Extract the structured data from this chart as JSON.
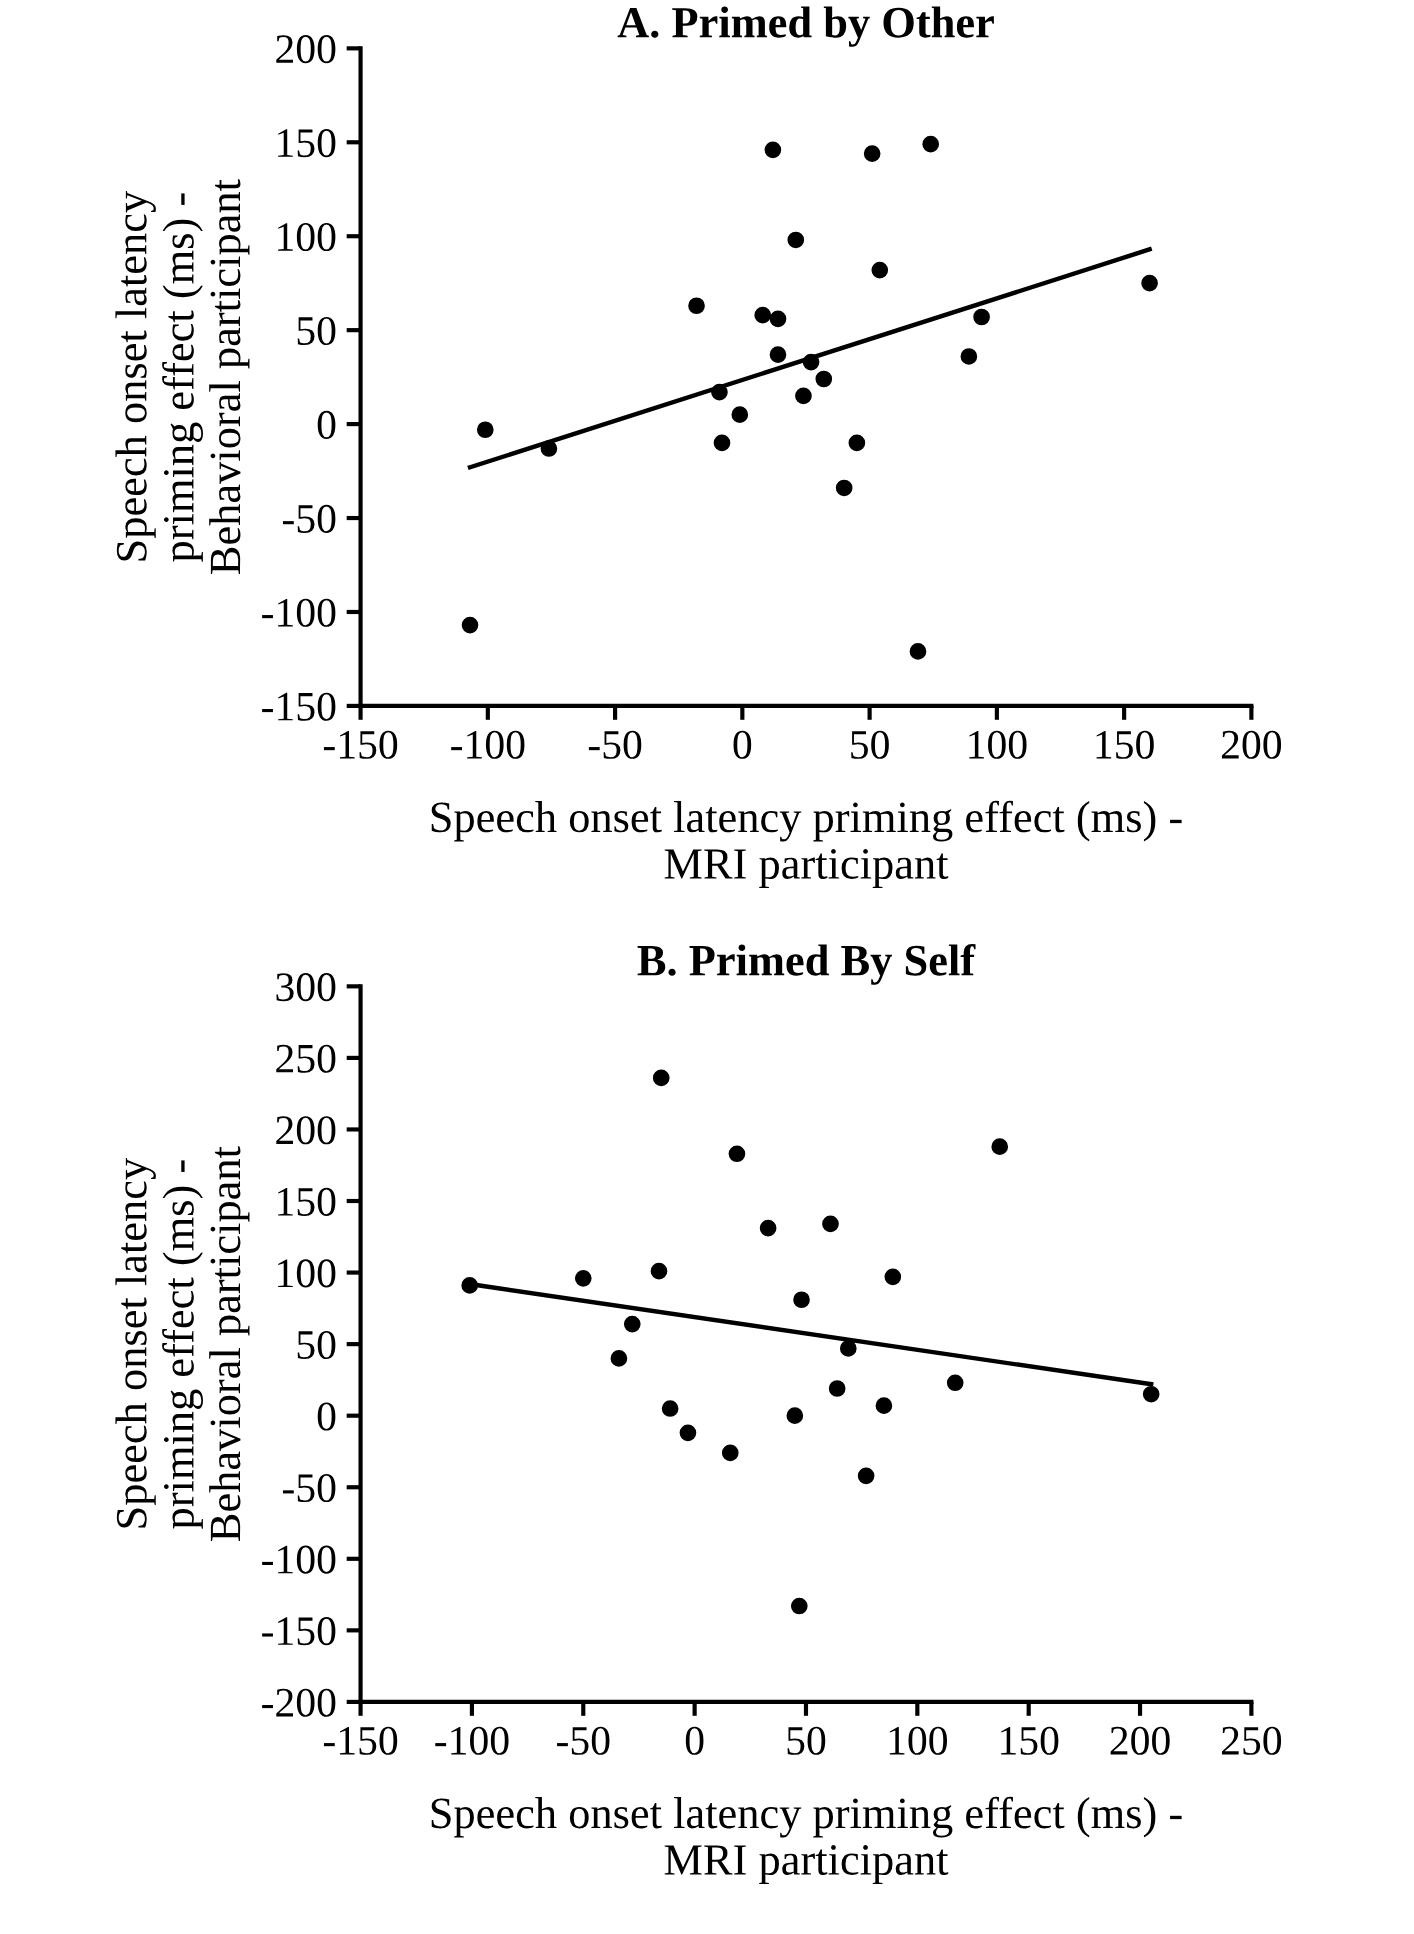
{
  "chart_data": [
    {
      "type": "scatter",
      "title": "A. Primed by Other",
      "xlabel": "Speech onset latency priming effect (ms) -\nMRI participant",
      "ylabel": "Speech onset latency\npriming effect (ms) -\nBehavioral participant",
      "xlim": [
        -150,
        200
      ],
      "xticks": [
        -150,
        -100,
        -50,
        0,
        50,
        100,
        150,
        200
      ],
      "ylim": [
        -150,
        200
      ],
      "yticks": [
        -150,
        -100,
        -50,
        0,
        50,
        100,
        150,
        200
      ],
      "marker": "circle",
      "grid": false,
      "legend": false,
      "series": [
        {
          "color": "#000000",
          "x": [
            -107,
            -101,
            -76,
            -18,
            -9,
            -8,
            -1,
            8,
            12,
            14,
            14,
            21,
            24,
            27,
            32,
            40,
            45,
            51,
            54,
            69,
            74,
            89,
            94,
            160
          ],
          "values": [
            -107,
            -3,
            -13,
            63,
            17,
            -10,
            5,
            58,
            146,
            56,
            37,
            98,
            15,
            33,
            24,
            -34,
            -10,
            144,
            82,
            -121,
            149,
            36,
            57,
            75
          ]
        },
        {
          "type": "line",
          "color": "#000000",
          "marker": "none",
          "x": [
            -107,
            160
          ],
          "values": [
            -23,
            93
          ]
        }
      ]
    },
    {
      "type": "scatter",
      "title": "B. Primed By Self",
      "xlabel": "Speech onset latency priming effect (ms) -\nMRI participant",
      "ylabel": "Speech onset latency\npriming effect (ms) -\nBehavioral participant",
      "xlim": [
        -150,
        250
      ],
      "xticks": [
        -150,
        -100,
        -50,
        0,
        50,
        100,
        150,
        200,
        250
      ],
      "ylim": [
        -200,
        300
      ],
      "yticks": [
        -200,
        -150,
        -100,
        -50,
        0,
        50,
        100,
        150,
        200,
        250,
        300
      ],
      "marker": "circle",
      "grid": false,
      "legend": false,
      "series": [
        {
          "color": "#000000",
          "x": [
            -101,
            -50,
            -34,
            -28,
            -16,
            -15,
            -11,
            -3,
            16,
            19,
            33,
            45,
            47,
            48,
            61,
            64,
            69,
            77,
            85,
            89,
            117,
            137,
            205
          ],
          "values": [
            91,
            96,
            40,
            64,
            101,
            236,
            5,
            -12,
            -26,
            183,
            131,
            0,
            -133,
            81,
            134,
            19,
            47,
            -42,
            7,
            97,
            23,
            188,
            15
          ]
        },
        {
          "type": "line",
          "color": "#000000",
          "marker": "none",
          "x": [
            -101,
            205
          ],
          "values": [
            92,
            22
          ]
        }
      ]
    }
  ]
}
